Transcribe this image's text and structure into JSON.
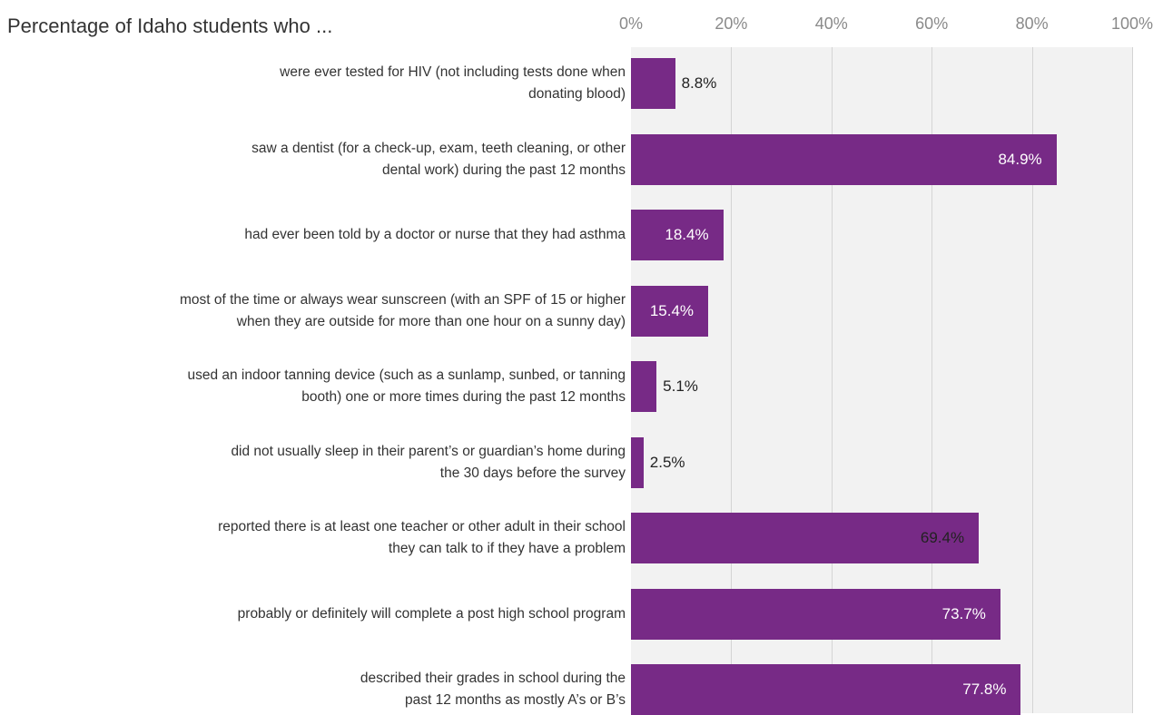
{
  "chart_data": {
    "type": "bar",
    "orientation": "horizontal",
    "title": "Percentage of Idaho students who ...",
    "xlim": [
      0,
      100
    ],
    "ticks": [
      "0%",
      "20%",
      "40%",
      "60%",
      "80%",
      "100%"
    ],
    "grid": true,
    "colors": {
      "bar": "#772a86",
      "plot_background": "#f2f2f2",
      "gridline": "#d4d4d4"
    },
    "categories": [
      [
        "were ever tested for HIV (not including tests done when",
        "donating blood)"
      ],
      [
        "saw a dentist (for a check-up, exam, teeth cleaning, or other",
        "dental work) during the past 12 months"
      ],
      [
        "had ever been told by a doctor or nurse that they had asthma"
      ],
      [
        "most of the time or always wear sunscreen (with an SPF of 15 or higher",
        "when they are outside for more than one hour on a sunny day)"
      ],
      [
        "used an indoor tanning device (such as a sunlamp, sunbed, or tanning",
        "booth) one or more times during the past 12 months"
      ],
      [
        "did not usually sleep in their parent’s or guardian’s home during",
        "the 30 days before the survey"
      ],
      [
        "reported there is at least one teacher or other adult in their school",
        "they can talk to if they have a problem"
      ],
      [
        "probably or definitely will complete a post high school program"
      ],
      [
        "described their grades in school during the",
        "past 12 months as mostly A’s or B’s"
      ]
    ],
    "values": [
      8.8,
      84.9,
      18.4,
      15.4,
      5.1,
      2.5,
      69.4,
      73.7,
      77.8
    ],
    "value_labels": [
      "8.8%",
      "84.9%",
      "18.4%",
      "15.4%",
      "5.1%",
      "2.5%",
      "69.4%",
      "73.7%",
      "77.8%"
    ],
    "label_position": [
      "outside",
      "inside",
      "inside",
      "inside",
      "outside",
      "outside",
      "inside-dark",
      "inside",
      "inside"
    ]
  }
}
